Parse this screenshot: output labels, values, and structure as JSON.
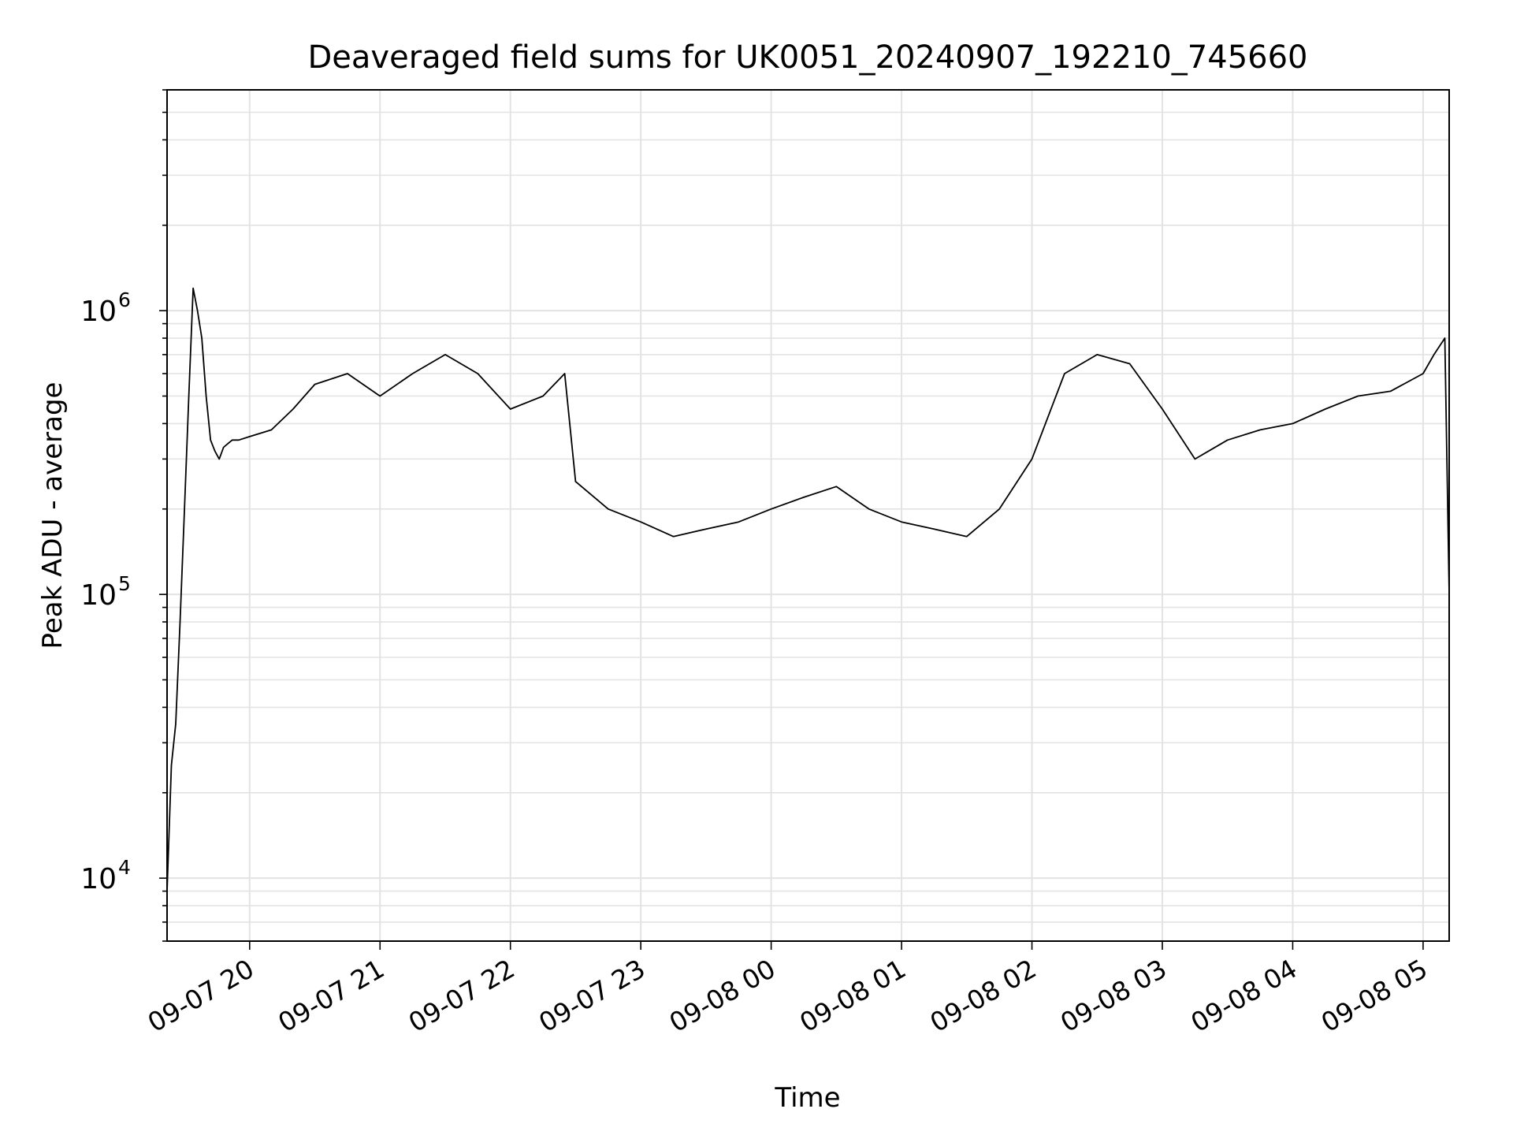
{
  "chart_data": {
    "type": "line",
    "title": "Deaveraged field sums for UK0051_20240907_192210_745660",
    "xlabel": "Time",
    "ylabel": "Peak ADU - average",
    "yscale": "log",
    "ylim": [
      6000,
      6000000
    ],
    "xlim": [
      "2024-09-07 19:22",
      "2024-09-08 05:12"
    ],
    "grid": true,
    "line_color": "#000000",
    "grid_color": "#e3e3e3",
    "x_ticks": [
      {
        "label": "09-07 20",
        "time": "2024-09-07 20:00"
      },
      {
        "label": "09-07 21",
        "time": "2024-09-07 21:00"
      },
      {
        "label": "09-07 22",
        "time": "2024-09-07 22:00"
      },
      {
        "label": "09-07 23",
        "time": "2024-09-07 23:00"
      },
      {
        "label": "09-08 00",
        "time": "2024-09-08 00:00"
      },
      {
        "label": "09-08 01",
        "time": "2024-09-08 01:00"
      },
      {
        "label": "09-08 02",
        "time": "2024-09-08 02:00"
      },
      {
        "label": "09-08 03",
        "time": "2024-09-08 03:00"
      },
      {
        "label": "09-08 04",
        "time": "2024-09-08 04:00"
      },
      {
        "label": "09-08 05",
        "time": "2024-09-08 05:00"
      }
    ],
    "y_ticks": [
      {
        "base": "10",
        "exp": "4",
        "value": 10000
      },
      {
        "base": "10",
        "exp": "5",
        "value": 100000
      },
      {
        "base": "10",
        "exp": "6",
        "value": 1000000
      }
    ],
    "series": [
      {
        "x": [
          "2024-09-07 19:22",
          "2024-09-07 19:24",
          "2024-09-07 19:26",
          "2024-09-07 19:28",
          "2024-09-07 19:30",
          "2024-09-07 19:32",
          "2024-09-07 19:34",
          "2024-09-07 19:36",
          "2024-09-07 19:38",
          "2024-09-07 19:40",
          "2024-09-07 19:42",
          "2024-09-07 19:44",
          "2024-09-07 19:46",
          "2024-09-07 19:48",
          "2024-09-07 19:50",
          "2024-09-07 19:52",
          "2024-09-07 19:55",
          "2024-09-07 20:00",
          "2024-09-07 20:10",
          "2024-09-07 20:20",
          "2024-09-07 20:30",
          "2024-09-07 20:45",
          "2024-09-07 21:00",
          "2024-09-07 21:15",
          "2024-09-07 21:30",
          "2024-09-07 21:45",
          "2024-09-07 22:00",
          "2024-09-07 22:15",
          "2024-09-07 22:25",
          "2024-09-07 22:30",
          "2024-09-07 22:45",
          "2024-09-07 23:00",
          "2024-09-07 23:15",
          "2024-09-07 23:30",
          "2024-09-07 23:45",
          "2024-09-08 00:00",
          "2024-09-08 00:15",
          "2024-09-08 00:30",
          "2024-09-08 00:45",
          "2024-09-08 01:00",
          "2024-09-08 01:15",
          "2024-09-08 01:30",
          "2024-09-08 01:45",
          "2024-09-08 02:00",
          "2024-09-08 02:15",
          "2024-09-08 02:30",
          "2024-09-08 02:45",
          "2024-09-08 03:00",
          "2024-09-08 03:15",
          "2024-09-08 03:30",
          "2024-09-08 03:45",
          "2024-09-08 04:00",
          "2024-09-08 04:15",
          "2024-09-08 04:30",
          "2024-09-08 04:45",
          "2024-09-08 05:00",
          "2024-09-08 05:05",
          "2024-09-08 05:10",
          "2024-09-08 05:12"
        ],
        "values": [
          9000,
          25000,
          35000,
          80000,
          200000,
          500000,
          1200000,
          1000000,
          800000,
          500000,
          350000,
          320000,
          300000,
          330000,
          340000,
          350000,
          350000,
          360000,
          380000,
          450000,
          550000,
          600000,
          500000,
          600000,
          700000,
          600000,
          450000,
          500000,
          600000,
          250000,
          200000,
          180000,
          160000,
          170000,
          180000,
          200000,
          220000,
          240000,
          200000,
          180000,
          170000,
          160000,
          200000,
          300000,
          600000,
          700000,
          650000,
          450000,
          300000,
          350000,
          380000,
          400000,
          450000,
          500000,
          520000,
          600000,
          700000,
          800000,
          100000
        ]
      }
    ]
  }
}
